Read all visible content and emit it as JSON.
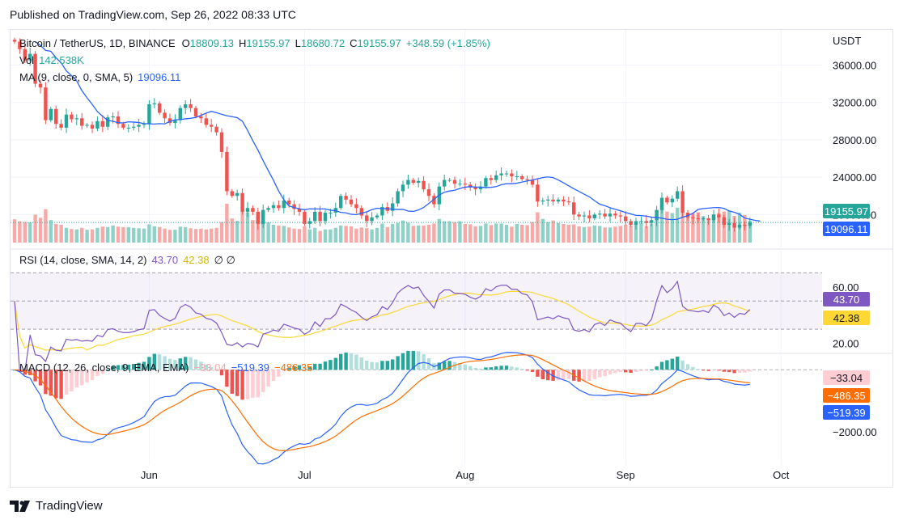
{
  "header": {
    "published": "Published on TradingView.com, Sep 26, 2022 08:33 UTC"
  },
  "legend": {
    "symbol": "Bitcoin / TetherUS, 1D, BINANCE",
    "o_label": "O",
    "o_value": "18809.13",
    "h_label": "H",
    "h_value": "19155.97",
    "l_label": "L",
    "l_value": "18680.72",
    "c_label": "C",
    "c_value": "19155.97",
    "change": "+348.59 (+1.85%)",
    "vol_label": "Vol",
    "vol_value": "142.538K",
    "ma_label": "MA (9, close, 0, SMA, 5)",
    "ma_value": "19096.11",
    "rsi_label": "RSI (14, close, SMA, 14, 2)",
    "rsi_value": "43.70",
    "rsi_ma_value": "42.38",
    "rsi_extra": "∅ ∅",
    "macd_label": "MACD (12, 26, close, 9, EMA, EMA)",
    "macd_hist_value": "−33.04",
    "macd_value": "−519.39",
    "macd_signal_value": "−486.35"
  },
  "brand": {
    "name": "TradingView",
    "logo": "tradingview-logo"
  },
  "colors": {
    "up": "#26a69a",
    "down": "#ef5350",
    "ma": "#2962ff",
    "rsi": "#7e57c2",
    "rsi_ma": "#fdd835",
    "macd": "#2962ff",
    "signal": "#ff6d00",
    "vol_up": "#8fd1c7",
    "vol_down": "#f7a9a7"
  },
  "chart_data": {
    "type": "candlestick",
    "title": "Bitcoin / TetherUS, 1D, BINANCE",
    "currency": "USDT",
    "x_labels": [
      {
        "label": "Jun",
        "index": 26
      },
      {
        "label": "Jul",
        "index": 56
      },
      {
        "label": "Aug",
        "index": 87
      },
      {
        "label": "Sep",
        "index": 118
      },
      {
        "label": "Oct",
        "index": 148
      }
    ],
    "price_axis": {
      "ticks": [
        "36000.00",
        "32000.00",
        "28000.00",
        "24000.00",
        "20000.00"
      ],
      "ylim": [
        17000,
        39500
      ]
    },
    "price_badges": {
      "last": "19155.97",
      "ma": "19096.11"
    },
    "rsi_axis": {
      "ticks": [
        "60.00",
        "20.00"
      ],
      "ylim": [
        14,
        84
      ],
      "band": [
        30,
        70
      ],
      "mid": 50
    },
    "rsi_badges": {
      "rsi": "43.70",
      "rsi_ma": "42.38"
    },
    "macd_axis": {
      "ticks": [
        "−2000.00"
      ],
      "ylim": [
        -2800,
        450
      ],
      "zero": 0
    },
    "macd_badges": {
      "hist": "−33.04",
      "signal": "−486.35",
      "macd": "−519.39"
    },
    "closes": [
      38500,
      37700,
      36500,
      37200,
      34000,
      33600,
      30100,
      31300,
      29700,
      29300,
      30700,
      30200,
      30300,
      29500,
      29600,
      29200,
      30000,
      29400,
      30400,
      30500,
      29700,
      29300,
      29300,
      29400,
      29600,
      29700,
      31800,
      31900,
      30900,
      30300,
      29800,
      30100,
      31400,
      31800,
      31400,
      30500,
      30300,
      29600,
      29400,
      28800,
      26700,
      22500,
      22000,
      22300,
      20300,
      20700,
      20300,
      19000,
      20500,
      20700,
      21000,
      20700,
      21500,
      21100,
      20600,
      20300,
      19000,
      19300,
      20300,
      19300,
      20200,
      20200,
      20700,
      22000,
      21600,
      21100,
      20700,
      19900,
      19300,
      19700,
      19900,
      20800,
      20400,
      21200,
      22500,
      23200,
      23700,
      23400,
      23600,
      22700,
      22000,
      21100,
      23000,
      23700,
      23700,
      23300,
      23300,
      23200,
      22900,
      22700,
      23000,
      23900,
      23700,
      24200,
      24400,
      24400,
      24100,
      24100,
      23800,
      23700,
      23200,
      21400,
      21500,
      21600,
      21400,
      21600,
      21400,
      21300,
      20000,
      19800,
      19900,
      19600,
      20000,
      20100,
      19800,
      20100,
      19900,
      19800,
      19300,
      18900,
      19300,
      19300,
      19100,
      19400,
      20500,
      21800,
      21300,
      21700,
      22500,
      20200,
      19700,
      19600,
      19500,
      19600,
      19400,
      20000,
      19700,
      18900,
      19100,
      18600,
      18900,
      18800,
      19150
    ],
    "volumes": [
      60,
      55,
      53,
      52,
      72,
      64,
      86,
      58,
      48,
      46,
      38,
      35,
      34,
      38,
      33,
      34,
      38,
      41,
      40,
      44,
      41,
      40,
      40,
      38,
      37,
      36,
      47,
      42,
      40,
      36,
      33,
      33,
      41,
      40,
      37,
      35,
      36,
      34,
      36,
      38,
      53,
      100,
      62,
      56,
      86,
      78,
      58,
      66,
      57,
      52,
      46,
      44,
      43,
      39,
      36,
      35,
      42,
      34,
      38,
      30,
      34,
      34,
      38,
      44,
      43,
      42,
      36,
      39,
      37,
      34,
      38,
      49,
      40,
      48,
      51,
      57,
      51,
      43,
      44,
      44,
      46,
      49,
      61,
      55,
      55,
      53,
      55,
      48,
      47,
      42,
      43,
      49,
      45,
      49,
      49,
      46,
      41,
      48,
      46,
      45,
      53,
      78,
      61,
      53,
      57,
      50,
      48,
      46,
      47,
      42,
      40,
      41,
      44,
      43,
      39,
      39,
      41,
      43,
      46,
      44,
      49,
      50,
      42,
      49,
      66,
      93,
      80,
      76,
      90,
      80,
      77,
      76,
      78,
      68,
      58,
      73,
      76,
      80,
      82,
      69,
      77,
      71,
      56
    ],
    "ma_lag": 5,
    "ma_period": 9
  }
}
